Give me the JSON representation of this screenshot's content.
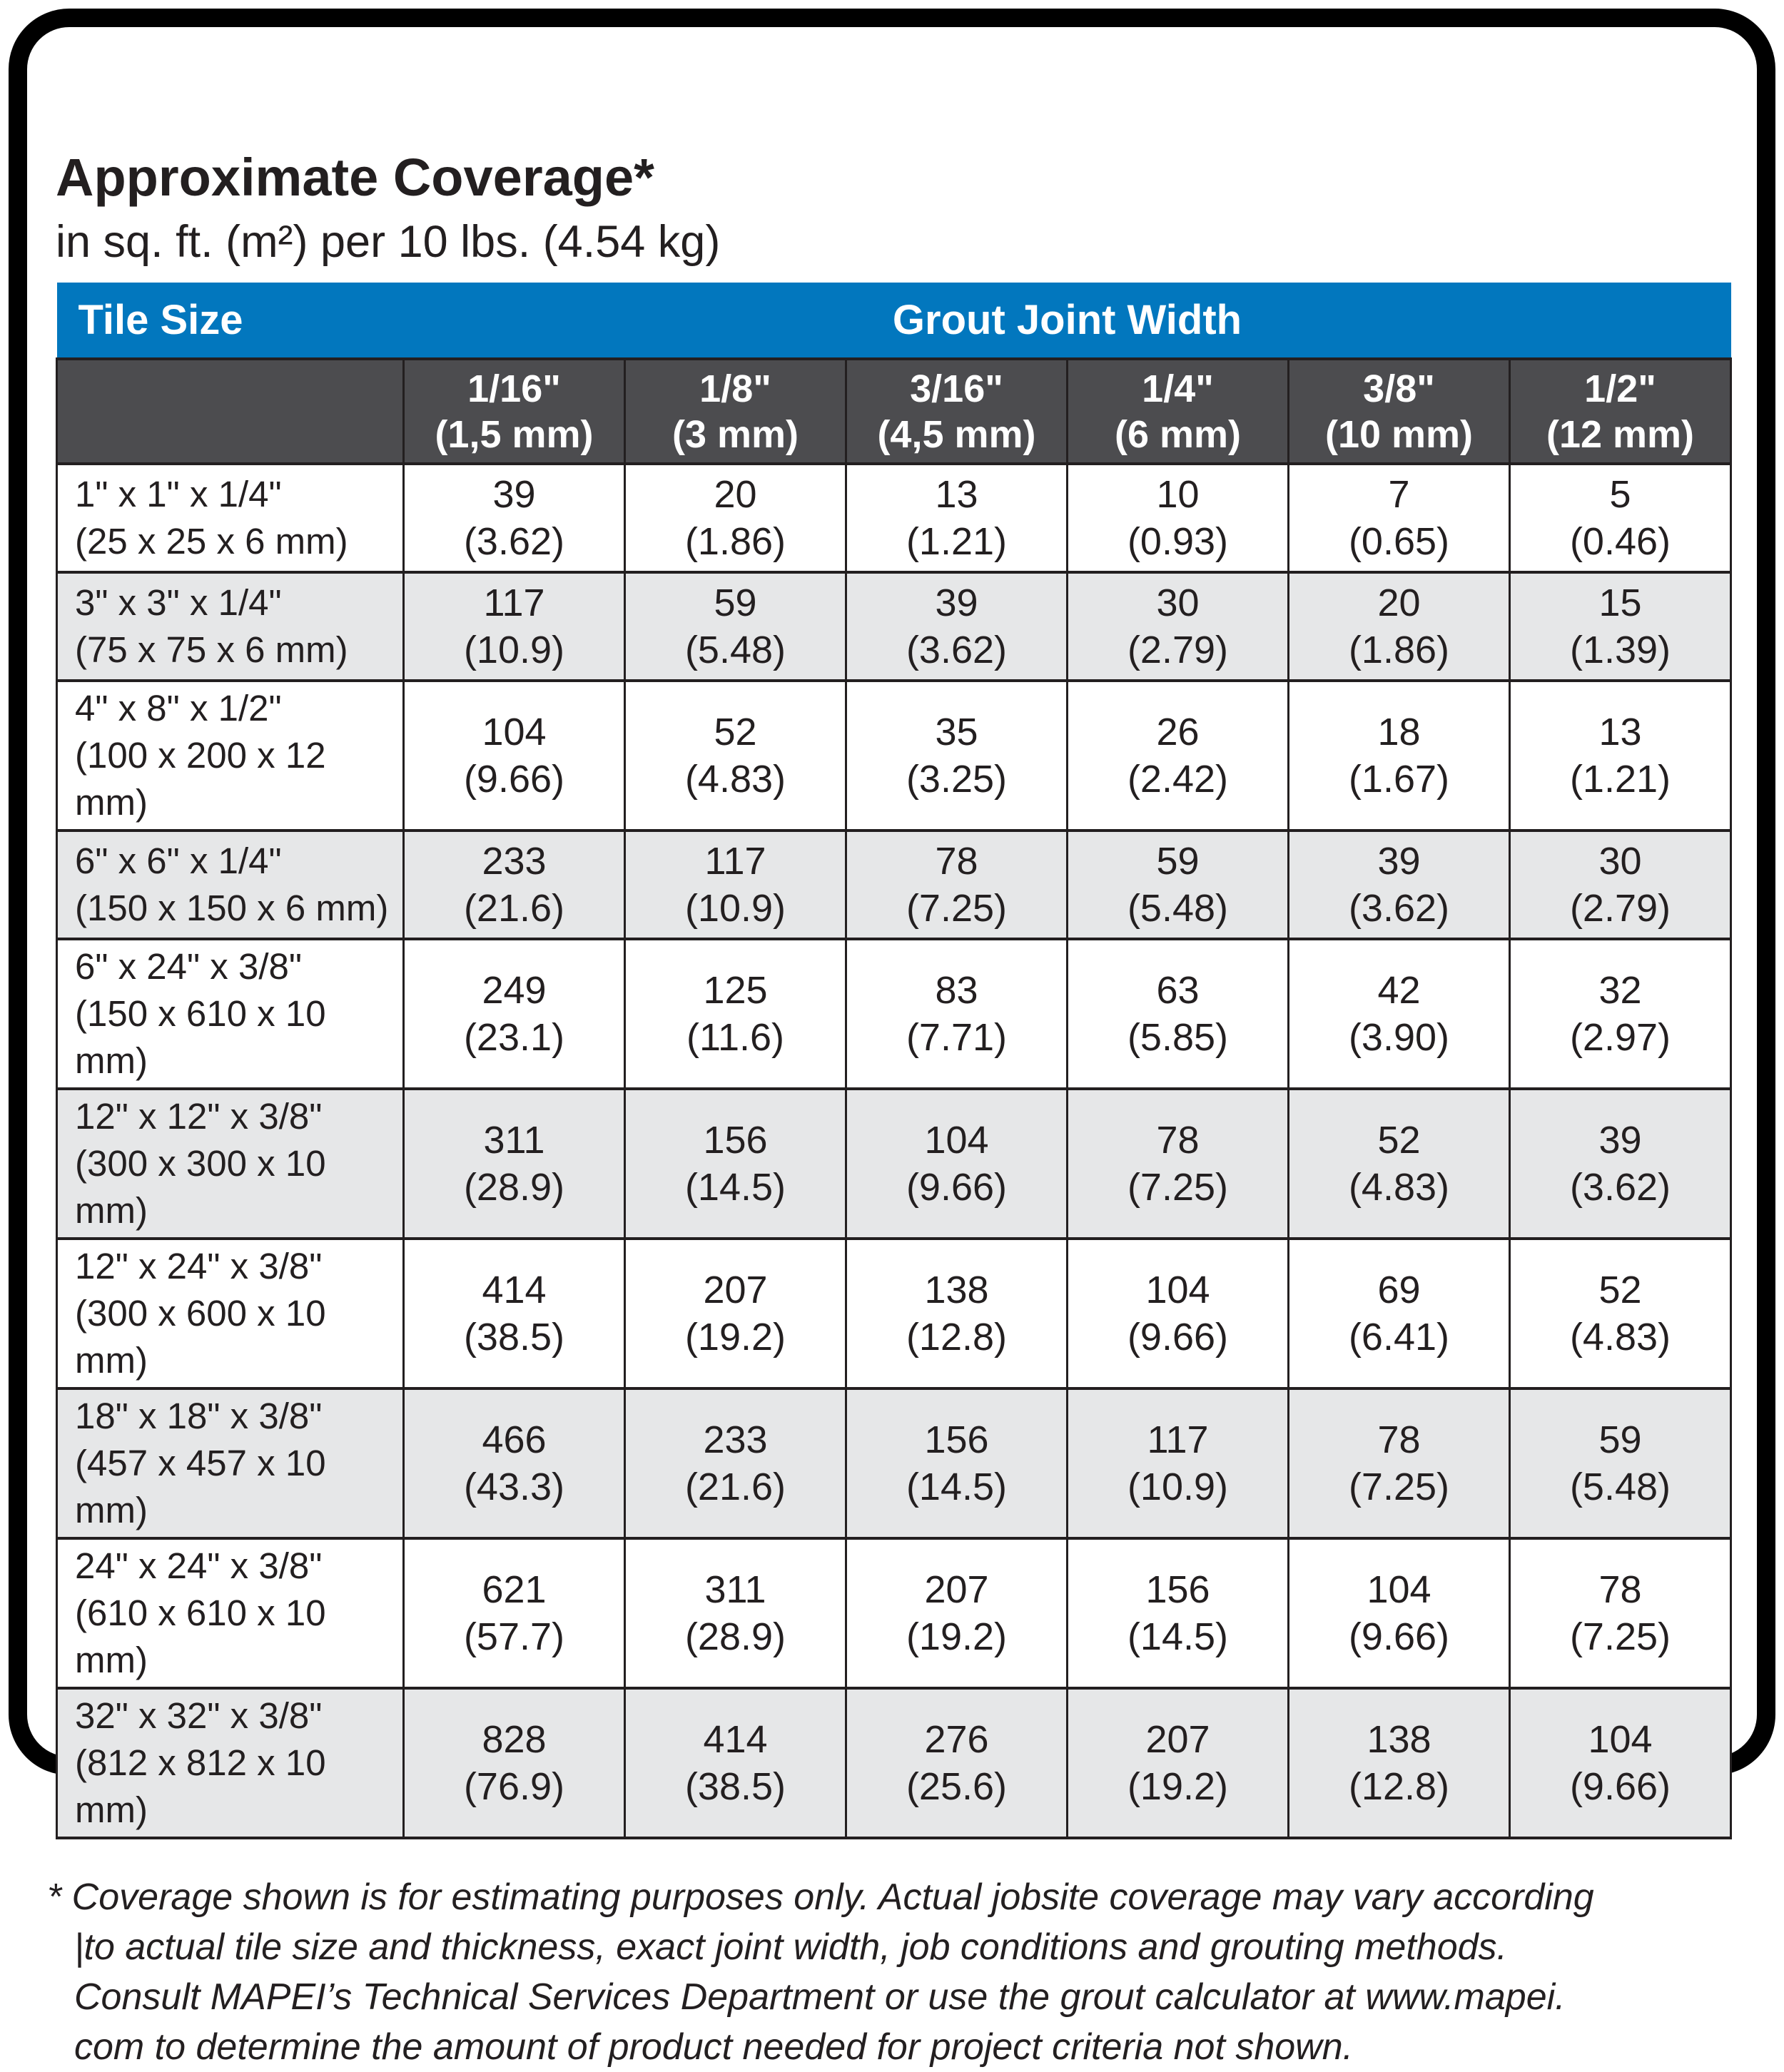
{
  "page": {
    "title": "Approximate Coverage*",
    "subtitle": "in sq. ft. (m²) per 10 lbs. (4.54 kg)"
  },
  "colors": {
    "header_blue": "#0277be",
    "header_dark_gray": "#4c4c4f",
    "row_alt_gray": "#e6e7e8",
    "text": "#231f20",
    "frame_black": "#000000"
  },
  "table": {
    "corner_label": "Tile Size",
    "group_header": "Grout Joint Width",
    "columns": [
      {
        "size": "1/16\"",
        "metric": "(1,5 mm)"
      },
      {
        "size": "1/8\"",
        "metric": "(3 mm)"
      },
      {
        "size": "3/16\"",
        "metric": "(4,5 mm)"
      },
      {
        "size": "1/4\"",
        "metric": "(6 mm)"
      },
      {
        "size": "3/8\"",
        "metric": "(10 mm)"
      },
      {
        "size": "1/2\"",
        "metric": "(12 mm)"
      }
    ],
    "rows": [
      {
        "size": "1\" x 1\" x 1/4\"",
        "metric": "(25 x 25 x 6 mm)",
        "cells": [
          {
            "value": "39",
            "metric": "(3.62)"
          },
          {
            "value": "20",
            "metric": "(1.86)"
          },
          {
            "value": "13",
            "metric": "(1.21)"
          },
          {
            "value": "10",
            "metric": "(0.93)"
          },
          {
            "value": "7",
            "metric": "(0.65)"
          },
          {
            "value": "5",
            "metric": "(0.46)"
          }
        ]
      },
      {
        "size": "3\" x 3\" x 1/4\"",
        "metric": "(75 x 75 x 6 mm)",
        "cells": [
          {
            "value": "117",
            "metric": "(10.9)"
          },
          {
            "value": "59",
            "metric": "(5.48)"
          },
          {
            "value": "39",
            "metric": "(3.62)"
          },
          {
            "value": "30",
            "metric": "(2.79)"
          },
          {
            "value": "20",
            "metric": "(1.86)"
          },
          {
            "value": "15",
            "metric": "(1.39)"
          }
        ]
      },
      {
        "size": "4\" x 8\" x 1/2\"",
        "metric": "(100 x 200 x 12 mm)",
        "cells": [
          {
            "value": "104",
            "metric": "(9.66)"
          },
          {
            "value": "52",
            "metric": "(4.83)"
          },
          {
            "value": "35",
            "metric": "(3.25)"
          },
          {
            "value": "26",
            "metric": "(2.42)"
          },
          {
            "value": "18",
            "metric": "(1.67)"
          },
          {
            "value": "13",
            "metric": "(1.21)"
          }
        ]
      },
      {
        "size": "6\" x 6\" x 1/4\"",
        "metric": "(150 x 150 x 6 mm)",
        "cells": [
          {
            "value": "233",
            "metric": "(21.6)"
          },
          {
            "value": "117",
            "metric": "(10.9)"
          },
          {
            "value": "78",
            "metric": "(7.25)"
          },
          {
            "value": "59",
            "metric": "(5.48)"
          },
          {
            "value": "39",
            "metric": "(3.62)"
          },
          {
            "value": "30",
            "metric": "(2.79)"
          }
        ]
      },
      {
        "size": "6\" x 24\" x 3/8\"",
        "metric": "(150 x 610 x 10 mm)",
        "cells": [
          {
            "value": "249",
            "metric": "(23.1)"
          },
          {
            "value": "125",
            "metric": "(11.6)"
          },
          {
            "value": "83",
            "metric": "(7.71)"
          },
          {
            "value": "63",
            "metric": "(5.85)"
          },
          {
            "value": "42",
            "metric": "(3.90)"
          },
          {
            "value": "32",
            "metric": "(2.97)"
          }
        ]
      },
      {
        "size": "12\" x 12\" x 3/8\"",
        "metric": "(300 x 300 x 10 mm)",
        "cells": [
          {
            "value": "311",
            "metric": "(28.9)"
          },
          {
            "value": "156",
            "metric": "(14.5)"
          },
          {
            "value": "104",
            "metric": "(9.66)"
          },
          {
            "value": "78",
            "metric": "(7.25)"
          },
          {
            "value": "52",
            "metric": "(4.83)"
          },
          {
            "value": "39",
            "metric": "(3.62)"
          }
        ]
      },
      {
        "size": "12\" x 24\" x 3/8\"",
        "metric": "(300 x 600 x 10 mm)",
        "cells": [
          {
            "value": "414",
            "metric": "(38.5)"
          },
          {
            "value": "207",
            "metric": "(19.2)"
          },
          {
            "value": "138",
            "metric": "(12.8)"
          },
          {
            "value": "104",
            "metric": "(9.66)"
          },
          {
            "value": "69",
            "metric": "(6.41)"
          },
          {
            "value": "52",
            "metric": "(4.83)"
          }
        ]
      },
      {
        "size": "18\" x 18\" x 3/8\"",
        "metric": "(457 x 457 x 10 mm)",
        "cells": [
          {
            "value": "466",
            "metric": "(43.3)"
          },
          {
            "value": "233",
            "metric": "(21.6)"
          },
          {
            "value": "156",
            "metric": "(14.5)"
          },
          {
            "value": "117",
            "metric": "(10.9)"
          },
          {
            "value": "78",
            "metric": "(7.25)"
          },
          {
            "value": "59",
            "metric": "(5.48)"
          }
        ]
      },
      {
        "size": "24\" x 24\" x 3/8\"",
        "metric": "(610 x 610 x 10 mm)",
        "cells": [
          {
            "value": "621",
            "metric": "(57.7)"
          },
          {
            "value": "311",
            "metric": "(28.9)"
          },
          {
            "value": "207",
            "metric": "(19.2)"
          },
          {
            "value": "156",
            "metric": "(14.5)"
          },
          {
            "value": "104",
            "metric": "(9.66)"
          },
          {
            "value": "78",
            "metric": "(7.25)"
          }
        ]
      },
      {
        "size": "32\" x 32\" x 3/8\"",
        "metric": "(812 x 812 x 10 mm)",
        "cells": [
          {
            "value": "828",
            "metric": "(76.9)"
          },
          {
            "value": "414",
            "metric": "(38.5)"
          },
          {
            "value": "276",
            "metric": "(25.6)"
          },
          {
            "value": "207",
            "metric": "(19.2)"
          },
          {
            "value": "138",
            "metric": "(12.8)"
          },
          {
            "value": "104",
            "metric": "(9.66)"
          }
        ]
      }
    ]
  },
  "footnote": {
    "lines": [
      "* Coverage shown is for estimating purposes only. Actual jobsite coverage may vary according",
      "|to actual tile size and thickness, exact joint width, job conditions and grouting methods.",
      "Consult MAPEI’s Technical Services Department or use the grout calculator at www.mapei.",
      "com to determine the amount of product needed for project criteria not shown."
    ]
  }
}
